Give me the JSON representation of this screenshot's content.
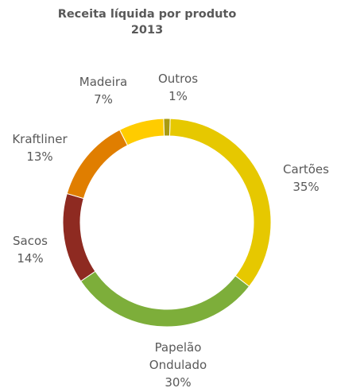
{
  "chart_data": {
    "type": "pie",
    "variant": "donut",
    "title": "Receita líquida por produto",
    "subtitle": "2013",
    "legend": "none",
    "slices": [
      {
        "label": "Cartões",
        "label_lines": [
          "Cartões"
        ],
        "value": 35,
        "display": "35%",
        "color": "#E6C800"
      },
      {
        "label": "Papelão Ondulado",
        "label_lines": [
          "Papelão",
          "Ondulado"
        ],
        "value": 30,
        "display": "30%",
        "color": "#7DAE3A"
      },
      {
        "label": "Sacos",
        "label_lines": [
          "Sacos"
        ],
        "value": 14,
        "display": "14%",
        "color": "#8E2A21"
      },
      {
        "label": "Kraftliner",
        "label_lines": [
          "Kraftliner"
        ],
        "value": 13,
        "display": "13%",
        "color": "#E07E00"
      },
      {
        "label": "Madeira",
        "label_lines": [
          "Madeira"
        ],
        "value": 7,
        "display": "7%",
        "color": "#FFCC00"
      },
      {
        "label": "Outros",
        "label_lines": [
          "Outros"
        ],
        "value": 1,
        "display": "1%",
        "color": "#A99B12"
      }
    ]
  }
}
